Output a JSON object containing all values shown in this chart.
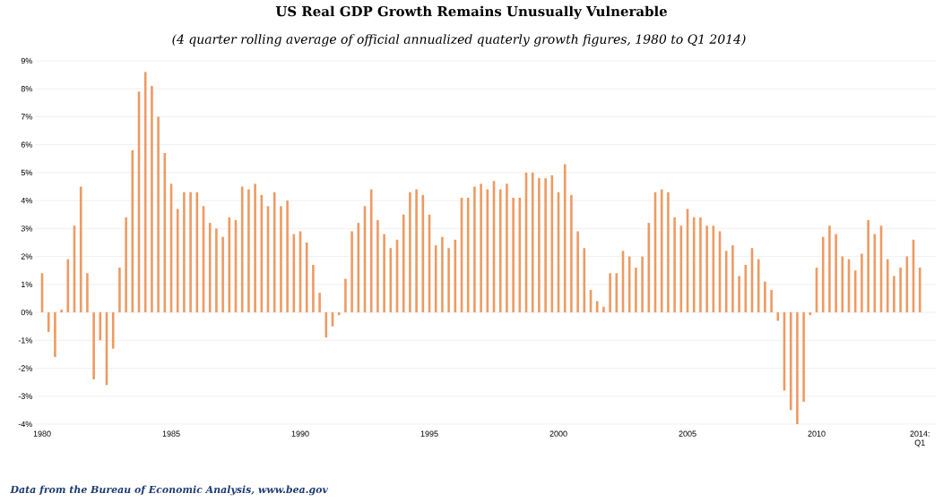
{
  "chart_data": {
    "type": "bar",
    "title": "US Real GDP Growth Remains Unusually Vulnerable",
    "subtitle": "(4 quarter rolling average of official annualized quaterly growth figures, 1980 to Q1 2014)",
    "categories": [
      "1980",
      null,
      null,
      null,
      null,
      null,
      null,
      null,
      null,
      null,
      null,
      null,
      null,
      null,
      null,
      null,
      null,
      null,
      null,
      null,
      "1985",
      null,
      null,
      null,
      null,
      null,
      null,
      null,
      null,
      null,
      null,
      null,
      null,
      null,
      null,
      null,
      null,
      null,
      null,
      null,
      "1990",
      null,
      null,
      null,
      null,
      null,
      null,
      null,
      null,
      null,
      null,
      null,
      null,
      null,
      null,
      null,
      null,
      null,
      null,
      null,
      "1995",
      null,
      null,
      null,
      null,
      null,
      null,
      null,
      null,
      null,
      null,
      null,
      null,
      null,
      null,
      null,
      null,
      null,
      null,
      null,
      "2000",
      null,
      null,
      null,
      null,
      null,
      null,
      null,
      null,
      null,
      null,
      null,
      null,
      null,
      null,
      null,
      null,
      null,
      null,
      null,
      "2005",
      null,
      null,
      null,
      null,
      null,
      null,
      null,
      null,
      null,
      null,
      null,
      null,
      null,
      null,
      null,
      null,
      null,
      null,
      null,
      "2010",
      null,
      null,
      null,
      null,
      null,
      null,
      null,
      null,
      null,
      null,
      null,
      null,
      null,
      null,
      null,
      "2014: Q1"
    ],
    "values": [
      1.4,
      -0.7,
      -1.6,
      0.1,
      1.9,
      3.1,
      4.5,
      1.4,
      -2.4,
      -1.0,
      -2.6,
      -1.3,
      1.6,
      3.4,
      5.8,
      7.9,
      8.6,
      8.1,
      7.0,
      5.7,
      4.6,
      3.7,
      4.3,
      4.3,
      4.3,
      3.8,
      3.2,
      3.0,
      2.7,
      3.4,
      3.3,
      4.5,
      4.4,
      4.6,
      4.2,
      3.8,
      4.3,
      3.8,
      4.0,
      2.8,
      2.9,
      2.5,
      1.7,
      0.7,
      -0.9,
      -0.5,
      -0.1,
      1.2,
      2.9,
      3.2,
      3.8,
      4.4,
      3.3,
      2.8,
      2.3,
      2.6,
      3.5,
      4.3,
      4.4,
      4.2,
      3.5,
      2.4,
      2.7,
      2.3,
      2.6,
      4.1,
      4.1,
      4.5,
      4.6,
      4.4,
      4.7,
      4.4,
      4.6,
      4.1,
      4.1,
      5.0,
      5.0,
      4.8,
      4.8,
      4.9,
      4.3,
      5.3,
      4.2,
      2.9,
      2.3,
      0.8,
      0.4,
      0.2,
      1.4,
      1.4,
      2.2,
      2.0,
      1.6,
      2.0,
      3.2,
      4.3,
      4.4,
      4.3,
      3.4,
      3.1,
      3.7,
      3.4,
      3.4,
      3.1,
      3.1,
      2.9,
      2.2,
      2.4,
      1.3,
      1.7,
      2.3,
      1.9,
      1.1,
      0.8,
      -0.3,
      -2.8,
      -3.5,
      -4.0,
      -3.2,
      -0.1,
      1.6,
      2.7,
      3.1,
      2.8,
      2.0,
      1.9,
      1.5,
      2.1,
      3.3,
      2.8,
      3.1,
      1.9,
      1.3,
      1.6,
      2.0,
      2.6,
      1.6
    ],
    "color": "#ee9a62",
    "ylim": [
      -4,
      9
    ],
    "yticks": [
      {
        "value": -4,
        "label": "-4%"
      },
      {
        "value": -3,
        "label": "-3%"
      },
      {
        "value": -2,
        "label": "-2%"
      },
      {
        "value": -1,
        "label": "-1%"
      },
      {
        "value": 0,
        "label": "0%"
      },
      {
        "value": 1,
        "label": "1%"
      },
      {
        "value": 2,
        "label": "2%"
      },
      {
        "value": 3,
        "label": "3%"
      },
      {
        "value": 4,
        "label": "4%"
      },
      {
        "value": 5,
        "label": "5%"
      },
      {
        "value": 6,
        "label": "6%"
      },
      {
        "value": 7,
        "label": "7%"
      },
      {
        "value": 8,
        "label": "8%"
      },
      {
        "value": 9,
        "label": "9%"
      }
    ],
    "grid": "y",
    "annotations": [
      "Data from the Bureau of Economic Analysis, www.bea.gov"
    ]
  }
}
